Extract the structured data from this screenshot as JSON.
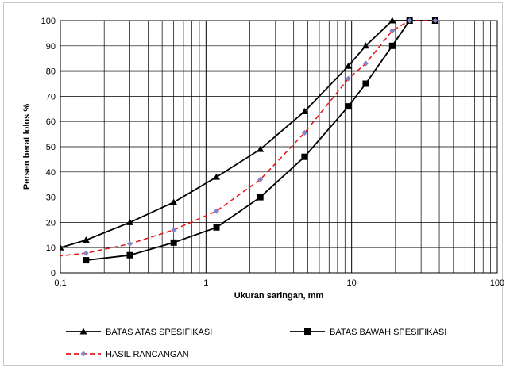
{
  "chart_data": {
    "type": "line",
    "xscale": "log",
    "xlim": [
      0.1,
      100
    ],
    "ylim": [
      0,
      100
    ],
    "xticks": [
      "0.1",
      "1",
      "10",
      "100"
    ],
    "yticks": [
      "0",
      "10",
      "20",
      "30",
      "40",
      "50",
      "60",
      "70",
      "80",
      "90",
      "100"
    ],
    "xlabel": "Ukuran saringan, mm",
    "ylabel": "Persen berat lolos %",
    "grid": true,
    "reference_line_y": 80,
    "legend_position": "bottom",
    "series": [
      {
        "name": "BATAS ATAS SPESIFIKASI",
        "color": "#000000",
        "marker": "triangle",
        "line": "solid",
        "points": [
          [
            0.1,
            10
          ],
          [
            0.15,
            13
          ],
          [
            0.3,
            20
          ],
          [
            0.6,
            28
          ],
          [
            1.18,
            38
          ],
          [
            2.36,
            49
          ],
          [
            4.75,
            64
          ],
          [
            9.5,
            82
          ],
          [
            12.5,
            90
          ],
          [
            19,
            100
          ],
          [
            25,
            100
          ],
          [
            37.5,
            100
          ]
        ]
      },
      {
        "name": "BATAS BAWAH SPESIFIKASI",
        "color": "#000000",
        "marker": "square",
        "line": "solid",
        "points": [
          [
            0.15,
            5
          ],
          [
            0.3,
            7
          ],
          [
            0.6,
            12
          ],
          [
            1.18,
            18
          ],
          [
            2.36,
            30
          ],
          [
            4.75,
            46
          ],
          [
            9.5,
            66
          ],
          [
            12.5,
            75
          ],
          [
            19,
            90
          ],
          [
            25,
            100
          ],
          [
            37.5,
            100
          ]
        ]
      },
      {
        "name": "HASIL RANCANGAN",
        "color": "#e41a1c",
        "marker_color": "#7f85c6",
        "marker": "diamond",
        "line": "dashed",
        "points": [
          [
            0.075,
            6
          ],
          [
            0.15,
            7.8
          ],
          [
            0.3,
            11.5
          ],
          [
            0.6,
            17
          ],
          [
            1.18,
            24.5
          ],
          [
            2.36,
            37
          ],
          [
            4.75,
            55.5
          ],
          [
            9.5,
            77
          ],
          [
            12.5,
            83
          ],
          [
            19,
            96
          ],
          [
            25,
            100
          ],
          [
            37.5,
            100
          ]
        ]
      }
    ]
  }
}
